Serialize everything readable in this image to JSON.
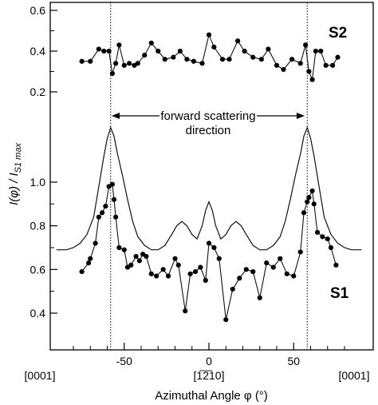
{
  "chart_data": {
    "type": "line",
    "xlabel": "Azimuthal Angle φ (°)",
    "ylabel": "I(φ) / I",
    "ylabel_sub": "S1 max",
    "xlim": [
      -90,
      90
    ],
    "x_ticks": [
      -50,
      0,
      50
    ],
    "x_tick_labels": [
      "-50",
      "0",
      "50"
    ],
    "direction_labels": [
      "[0001]",
      "[1̅2̅10]",
      "[0001]"
    ],
    "direction_label_x": [
      -90,
      0,
      90
    ],
    "annotation": {
      "line1": "forward scattering",
      "line2": "direction"
    },
    "vlines": [
      -58,
      58
    ],
    "panels": [
      {
        "name": "upper",
        "y_ticks": [
          0.2,
          0.4,
          0.6
        ],
        "y_tick_labels": [
          "0.2",
          "0.4",
          "0.6"
        ],
        "ylim": [
          0.1,
          0.6
        ]
      },
      {
        "name": "lower",
        "y_ticks": [
          0.4,
          0.6,
          0.8,
          1.0
        ],
        "y_tick_labels": [
          "0.4",
          "0.6",
          "0.8",
          "1.0"
        ],
        "ylim": [
          0.3,
          1.3
        ]
      }
    ],
    "series": [
      {
        "name": "S2",
        "panel": "upper",
        "markers": true,
        "x": [
          -75,
          -70,
          -65,
          -62,
          -59,
          -57,
          -55,
          -53,
          -50,
          -47,
          -44,
          -42,
          -38,
          -34,
          -30,
          -26,
          -21,
          -17,
          -13,
          -9,
          -4,
          0,
          3,
          8,
          12,
          17,
          21,
          26,
          31,
          35,
          40,
          44,
          49,
          54,
          57,
          59,
          61,
          63,
          66,
          69,
          73,
          76
        ],
        "y": [
          0.35,
          0.35,
          0.41,
          0.4,
          0.4,
          0.29,
          0.34,
          0.43,
          0.33,
          0.34,
          0.33,
          0.34,
          0.38,
          0.44,
          0.4,
          0.36,
          0.37,
          0.4,
          0.36,
          0.35,
          0.34,
          0.48,
          0.42,
          0.36,
          0.36,
          0.45,
          0.4,
          0.37,
          0.36,
          0.41,
          0.33,
          0.31,
          0.36,
          0.34,
          0.43,
          0.3,
          0.26,
          0.4,
          0.4,
          0.33,
          0.33,
          0.37
        ]
      },
      {
        "name": "",
        "panel": "lower",
        "markers": false,
        "x": [
          -90,
          -84,
          -80,
          -76,
          -72,
          -68,
          -65,
          -62,
          -60,
          -58,
          -56,
          -54,
          -51,
          -48,
          -45,
          -42,
          -38,
          -34,
          -30,
          -26,
          -22,
          -19,
          -16,
          -13,
          -10,
          -7,
          -4,
          -2,
          0,
          2,
          4,
          7,
          10,
          13,
          16,
          19,
          22,
          26,
          30,
          34,
          38,
          42,
          45,
          48,
          51,
          54,
          56,
          58,
          60,
          62,
          65,
          68,
          72,
          76,
          80,
          84,
          90
        ],
        "y": [
          0.69,
          0.69,
          0.7,
          0.72,
          0.76,
          0.84,
          0.98,
          1.12,
          1.2,
          1.25,
          1.21,
          1.13,
          1.03,
          0.92,
          0.82,
          0.75,
          0.71,
          0.69,
          0.69,
          0.71,
          0.76,
          0.8,
          0.82,
          0.8,
          0.76,
          0.74,
          0.8,
          0.87,
          0.91,
          0.87,
          0.8,
          0.74,
          0.76,
          0.8,
          0.82,
          0.8,
          0.76,
          0.71,
          0.69,
          0.69,
          0.71,
          0.75,
          0.82,
          0.92,
          1.03,
          1.13,
          1.21,
          1.25,
          1.2,
          1.12,
          0.98,
          0.84,
          0.76,
          0.72,
          0.7,
          0.69,
          0.69
        ]
      },
      {
        "name": "S1",
        "panel": "lower",
        "markers": true,
        "x": [
          -75,
          -71,
          -70,
          -67,
          -65,
          -63,
          -61,
          -59,
          -57,
          -56,
          -55,
          -53,
          -50,
          -48,
          -46,
          -43,
          -41,
          -39,
          -37,
          -34,
          -31,
          -27,
          -24,
          -20,
          -18,
          -14,
          -11,
          -8,
          -5,
          -2,
          0,
          3,
          6,
          10,
          14,
          18,
          22,
          26,
          30,
          34,
          38,
          42,
          46,
          50,
          54,
          56,
          58,
          59,
          61,
          62,
          64,
          67,
          70,
          72,
          75
        ],
        "y": [
          0.59,
          0.63,
          0.65,
          0.72,
          0.84,
          0.86,
          0.89,
          0.98,
          0.99,
          0.92,
          0.84,
          0.7,
          0.69,
          0.61,
          0.62,
          0.66,
          0.64,
          0.67,
          0.66,
          0.58,
          0.57,
          0.6,
          0.57,
          0.65,
          0.62,
          0.41,
          0.58,
          0.59,
          0.61,
          0.55,
          0.72,
          0.7,
          0.65,
          0.37,
          0.51,
          0.56,
          0.6,
          0.59,
          0.47,
          0.63,
          0.61,
          0.65,
          0.58,
          0.57,
          0.68,
          0.86,
          0.91,
          0.93,
          0.96,
          0.9,
          0.77,
          0.75,
          0.74,
          0.7,
          0.62
        ]
      }
    ],
    "series_labels": [
      "S2",
      "S1"
    ]
  }
}
